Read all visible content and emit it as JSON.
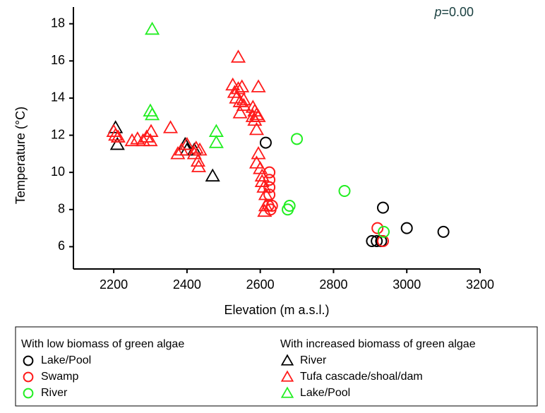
{
  "chart_data": {
    "type": "scatter",
    "annotation": {
      "italic": "p",
      "text": "=0.00",
      "color": "#1a4040"
    },
    "x_label": "Elevation (m a.s.l.)",
    "y_label": "Temperature (°C)",
    "xlim": [
      2090,
      3200
    ],
    "xticks": [
      2200,
      2400,
      2600,
      2800,
      3000,
      3200
    ],
    "ylim": [
      4.8,
      18.9
    ],
    "yticks": [
      6,
      8,
      10,
      12,
      14,
      16,
      18
    ],
    "groups": [
      {
        "title": "With low biomass of green algae",
        "series": [
          {
            "name": "Lake/Pool",
            "color": "#000000",
            "marker": "circle",
            "x": [
              2615,
              2935,
              3000,
              3100,
              2905,
              2918,
              2930
            ],
            "values": [
              11.6,
              8.1,
              7.0,
              6.8,
              6.3,
              6.3,
              6.3
            ]
          },
          {
            "name": "Swamp",
            "color": "#ff1a1a",
            "marker": "circle",
            "x": [
              2625,
              2625,
              2625,
              2625,
              2622,
              2628,
              2632,
              2920,
              2935
            ],
            "values": [
              10.0,
              9.6,
              9.2,
              8.8,
              8.2,
              8.0,
              8.2,
              7.0,
              6.3
            ]
          },
          {
            "name": "River",
            "color": "#22ee22",
            "marker": "circle",
            "x": [
              2700,
              2830,
              2680,
              2675,
              2937
            ],
            "values": [
              11.8,
              9.0,
              8.2,
              8.0,
              6.8
            ]
          }
        ]
      },
      {
        "title": "With increased biomass of green algae",
        "series": [
          {
            "name": "River",
            "color": "#000000",
            "marker": "triangle",
            "x": [
              2205,
              2210,
              2395,
              2400,
              2420,
              2470
            ],
            "values": [
              12.4,
              11.5,
              11.5,
              11.2,
              11.2,
              9.8
            ]
          },
          {
            "name": "Tufa cascade/shoal/dam",
            "color": "#ff1a1a",
            "marker": "triangle",
            "x": [
              2200,
              2205,
              2212,
              2250,
              2265,
              2280,
              2290,
              2300,
              2302,
              2355,
              2375,
              2385,
              2400,
              2420,
              2425,
              2430,
              2432,
              2435,
              2525,
              2530,
              2535,
              2540,
              2545,
              2540,
              2550,
              2545,
              2555,
              2555,
              2580,
              2585,
              2580,
              2590,
              2585,
              2590,
              2595,
              2595,
              2595,
              2590,
              2600,
              2605,
              2605,
              2610,
              2615,
              2615,
              2612
            ],
            "values": [
              12.2,
              12.0,
              11.9,
              11.7,
              11.8,
              11.7,
              11.9,
              11.7,
              12.2,
              12.4,
              11.0,
              11.2,
              11.5,
              11.0,
              11.3,
              10.6,
              10.3,
              11.2,
              14.7,
              14.3,
              14.0,
              14.5,
              13.8,
              16.2,
              14.6,
              13.2,
              13.6,
              13.9,
              13.5,
              13.3,
              13.0,
              13.1,
              12.8,
              12.3,
              14.6,
              13.0,
              11.0,
              10.5,
              10.2,
              9.8,
              9.5,
              9.2,
              8.8,
              8.2,
              7.9
            ]
          },
          {
            "name": "Lake/Pool",
            "color": "#22ee22",
            "marker": "triangle",
            "x": [
              2305,
              2300,
              2305,
              2480,
              2480
            ],
            "values": [
              17.7,
              13.3,
              13.1,
              12.2,
              11.6
            ]
          }
        ]
      }
    ]
  }
}
